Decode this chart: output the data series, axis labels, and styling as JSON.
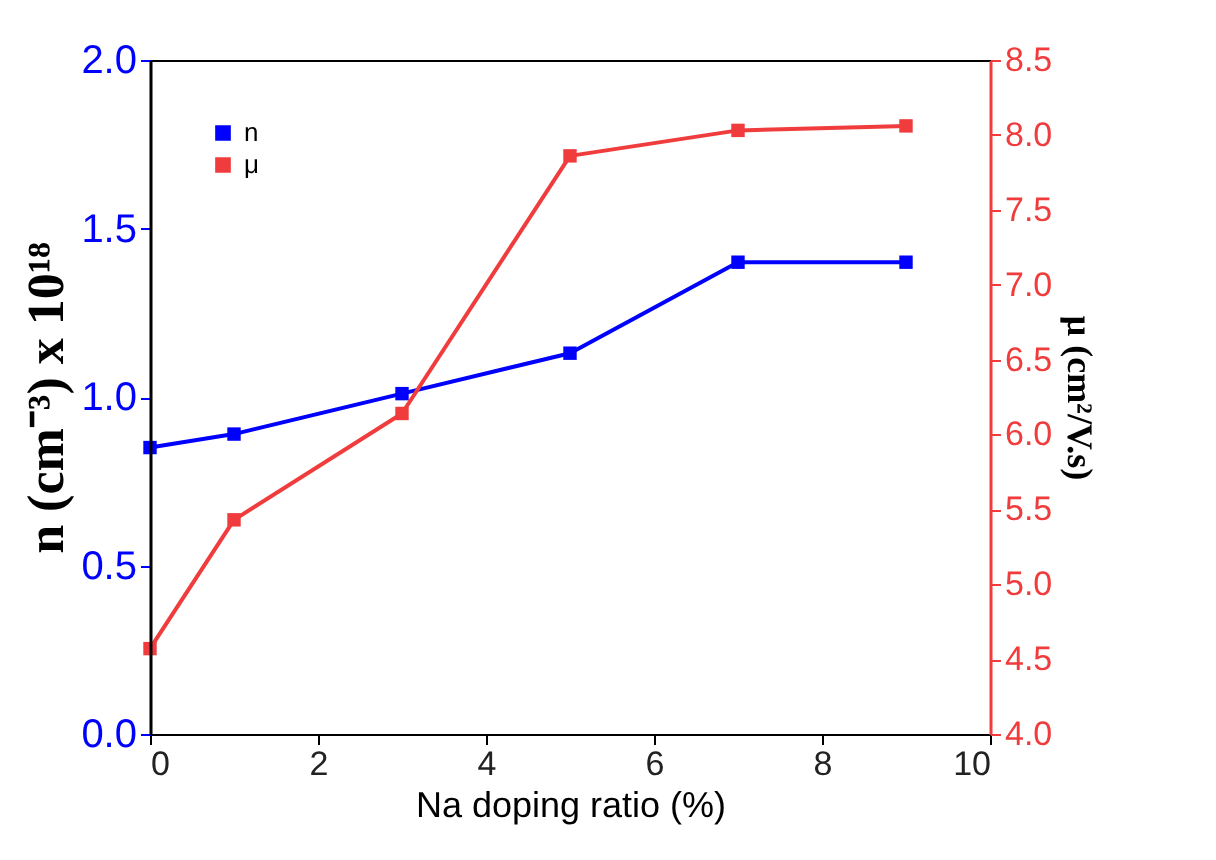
{
  "chart_data": {
    "type": "line",
    "xlabel": "Na doping ratio (%)",
    "ylabel": "n (cm⁻³) x 10¹⁸",
    "y2label": "μ (cm²/V.s)",
    "xlim": [
      0,
      10
    ],
    "xticks": [
      0,
      2,
      4,
      6,
      8,
      10
    ],
    "ylim": [
      0,
      2.0
    ],
    "yticks": [
      {
        "value": 0,
        "label": "0.0"
      },
      0.5,
      {
        "value": 1,
        "label": "1.0"
      },
      1.5,
      {
        "value": 2,
        "label": "2.0"
      }
    ],
    "y2lim": [
      4.0,
      8.5
    ],
    "y2ticks": [
      {
        "value": 4,
        "label": "4.0"
      },
      4.5,
      {
        "value": 5,
        "label": "5.0"
      },
      5.5,
      {
        "value": 6,
        "label": "6.0"
      },
      6.5,
      {
        "value": 7,
        "label": "7.0"
      },
      7.5,
      {
        "value": 8,
        "label": "8.0"
      },
      8.5
    ],
    "x": [
      0,
      1,
      3,
      5,
      7,
      9
    ],
    "series": [
      {
        "name": "n",
        "color": "#0000ff",
        "values": [
          0.85,
          0.89,
          1.01,
          1.13,
          1.4,
          1.4
        ]
      },
      {
        "name": "μ",
        "color": "#f03c3c",
        "axis": "y2",
        "values": [
          4.57,
          5.43,
          6.14,
          7.86,
          8.03,
          8.06
        ]
      }
    ],
    "marker": "square",
    "line_style": "solid",
    "grid": false,
    "legend": "top left"
  }
}
